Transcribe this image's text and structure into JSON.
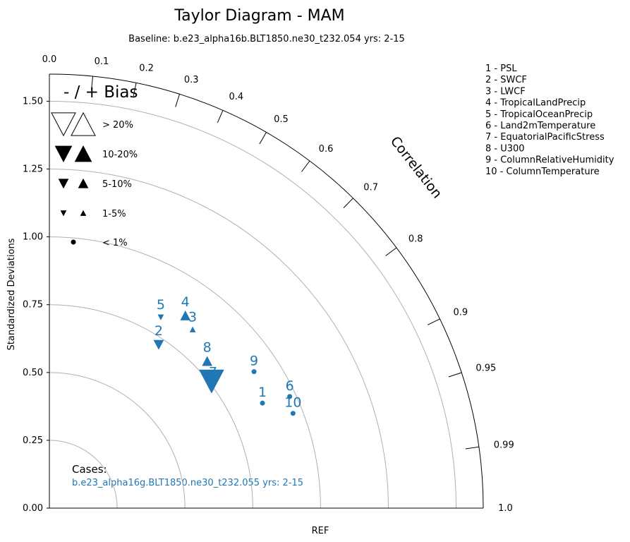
{
  "chart_data": {
    "type": "scatter",
    "diagram": "taylor",
    "title": "Taylor Diagram - MAM",
    "subtitle": "Baseline: b.e23_alpha16b.BLT1850.ne30_t232.054  yrs: 2-15",
    "ylabel": "Standardized Deviations",
    "xlabel": "REF",
    "angle_label": "Correlation",
    "std_range": [
      0,
      1.6
    ],
    "std_ticks": [
      "0.00",
      "0.25",
      "0.50",
      "0.75",
      "1.00",
      "1.25",
      "1.50"
    ],
    "std_tick_values": [
      0,
      0.25,
      0.5,
      0.75,
      1.0,
      1.25,
      1.5
    ],
    "std_arcs": [
      0.25,
      0.5,
      0.75,
      1.0,
      1.25,
      1.5
    ],
    "corr_ticks": [
      0.0,
      0.1,
      0.2,
      0.3,
      0.4,
      0.5,
      0.6,
      0.7,
      0.8,
      0.9,
      0.95,
      0.99,
      1.0
    ],
    "corr_tick_labels": [
      "0.0",
      "0.1",
      "0.2",
      "0.3",
      "0.4",
      "0.5",
      "0.6",
      "0.7",
      "0.8",
      "0.9",
      "0.95",
      "0.99",
      "1.0"
    ],
    "grid": true,
    "bias_legend": {
      "title": "- / + Bias",
      "entries": [
        ">  20%",
        "10-20%",
        "5-10%",
        "1-5%",
        "< 1%"
      ]
    },
    "variables": [
      "1 - PSL",
      "2 - SWCF",
      "3 - LWCF",
      "4 - TropicalLandPrecip",
      "5 - TropicalOceanPrecip",
      "6 - Land2mTemperature",
      "7 - EquatorialPacificStress",
      "8 - U300",
      "9 - ColumnRelativeHumidity",
      "10 - ColumnTemperature"
    ],
    "cases_label": "Cases:",
    "series": [
      {
        "name": "b.e23_alpha16g.BLT1850.ne30_t232.055  yrs: 2-15",
        "color": "#1f77b4",
        "points": [
          {
            "id": "1",
            "std": 0.876,
            "corr": 0.897,
            "bias_sign": "none",
            "bias_class": "<1%"
          },
          {
            "id": "2",
            "std": 0.725,
            "corr": 0.556,
            "bias_sign": "-",
            "bias_class": "5-10%"
          },
          {
            "id": "3",
            "std": 0.844,
            "corr": 0.626,
            "bias_sign": "+",
            "bias_class": "1-5%"
          },
          {
            "id": "4",
            "std": 0.869,
            "corr": 0.577,
            "bias_sign": "+",
            "bias_class": "5-10%"
          },
          {
            "id": "5",
            "std": 0.815,
            "corr": 0.504,
            "bias_sign": "-",
            "bias_class": "1-5%"
          },
          {
            "id": "6",
            "std": 0.977,
            "corr": 0.907,
            "bias_sign": "none",
            "bias_class": "<1%"
          },
          {
            "id": "7",
            "std": 0.759,
            "corr": 0.788,
            "bias_sign": "-",
            "bias_class": ">20%"
          },
          {
            "id": "8",
            "std": 0.795,
            "corr": 0.732,
            "bias_sign": "+",
            "bias_class": "5-10%"
          },
          {
            "id": "9",
            "std": 0.907,
            "corr": 0.832,
            "bias_sign": "none",
            "bias_class": "<1%"
          },
          {
            "id": "10",
            "std": 0.964,
            "corr": 0.932,
            "bias_sign": "none",
            "bias_class": "<1%"
          }
        ]
      }
    ]
  }
}
